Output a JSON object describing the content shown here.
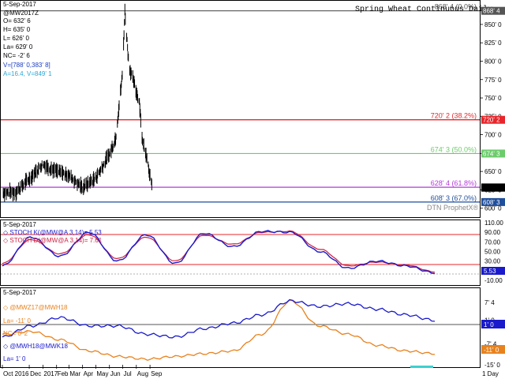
{
  "header": {
    "date": "5-Sep-2017",
    "symbol": "@MW2017Z",
    "ohlc": [
      "O= 632' 6",
      "H= 635' 0",
      "L= 626' 0",
      "La= 629' 0",
      "NC= -2' 6"
    ],
    "volume": "V=[788' 0,383' 8]",
    "avg": "A=16.4, V=849' 1",
    "title": "Spring Wheat Continuous Daily",
    "watermark": "DTN ProphetX®"
  },
  "price_panel": {
    "y_ticks": [
      "868' 4",
      "850' 0",
      "825' 0",
      "800' 0",
      "775' 0",
      "750' 0",
      "725' 0",
      "700' 0",
      "674' 3",
      "650' 0",
      "625' 0",
      "600' 0"
    ],
    "fib_lines": [
      {
        "label": "868' 4 (0.0%)",
        "value": 868.5,
        "color": "#555555",
        "tag": "868' 4"
      },
      {
        "label": "720' 2 (38.2%)",
        "value": 720.25,
        "color": "#e8262b",
        "tag": "720' 2"
      },
      {
        "label": "674' 3 (50.0%)",
        "value": 674.375,
        "color": "#6ccc6c",
        "tag": "674' 3"
      },
      {
        "label": "628' 4 (61.8%)",
        "value": 628.5,
        "color": "#b23ad8",
        "tag": "629' 0"
      },
      {
        "label": "608' 3 (67.0%)",
        "value": 608.375,
        "color": "#1f4e9c",
        "tag": "608' 3"
      }
    ]
  },
  "stoch_panel": {
    "date": "5-Sep-2017",
    "k_label": "STOCH K(@MW@A 3,14)= 5.53",
    "d_label": "STOCH D(@MW@A 3,14)= 7.61",
    "y_ticks": [
      "110.00",
      "90.00",
      "70.00",
      "50.00",
      "30.00",
      "10.00",
      "-10.00"
    ],
    "current_tag": "5.53",
    "k_color": "#1a1acc",
    "d_color": "#cc2244"
  },
  "spread_panel": {
    "date": "5-Sep-2017",
    "s1_label": "@MWZ17@MWH18",
    "s1_last": "La= -11' 0",
    "s1_nc": "NC= 0' 2",
    "s2_label": "@MWH18@MWK18",
    "s2_last": "La= 1' 0",
    "y_ticks": [
      "7' 4",
      "1' 0",
      "-7' 4",
      "-15' 0"
    ],
    "tag_blue": "1' 0",
    "tag_orange": "-11' 0",
    "s1_color": "#e8821e",
    "s2_color": "#1a1acc"
  },
  "x_axis": {
    "labels": [
      "Oct 2016",
      "Dec",
      "2017",
      "Feb",
      "Mar",
      "Apr",
      "May",
      "Jun",
      "Jul",
      "Aug",
      "Sep"
    ],
    "interval": "1 Day"
  },
  "chart_data": [
    {
      "type": "ohlc",
      "title": "Spring Wheat Continuous Daily",
      "ylim": [
        590,
        880
      ],
      "x": [
        "2016-10-01",
        "2016-11-01",
        "2016-12-01",
        "2017-01-01",
        "2017-02-01",
        "2017-03-01",
        "2017-04-01",
        "2017-05-01",
        "2017-06-01",
        "2017-06-15",
        "2017-06-30",
        "2017-07-06",
        "2017-07-15",
        "2017-07-31",
        "2017-08-08",
        "2017-08-15",
        "2017-08-25",
        "2017-09-05"
      ],
      "close": [
        621,
        622,
        640,
        660,
        650,
        645,
        628,
        641,
        673,
        695,
        780,
        868,
        795,
        760,
        745,
        690,
        670,
        629
      ]
    },
    {
      "type": "line",
      "series": [
        {
          "name": "STOCH K(@MW@A 3,14)",
          "values": [
            20,
            80,
            40,
            90,
            30,
            85,
            25,
            88,
            60,
            92,
            90,
            50,
            15,
            30,
            20,
            5.53
          ]
        },
        {
          "name": "STOCH D(@MW@A 3,14)",
          "values": [
            25,
            75,
            45,
            85,
            35,
            80,
            30,
            84,
            65,
            90,
            92,
            55,
            20,
            28,
            22,
            7.61
          ]
        }
      ],
      "ylim": [
        -10,
        110
      ]
    },
    {
      "type": "line",
      "series": [
        {
          "name": "@MWZ17@MWH18",
          "values": [
            -4,
            -3,
            -6,
            -10,
            -12,
            -13,
            -12,
            -11,
            -10,
            -4,
            8,
            -1,
            -4,
            -8,
            -10,
            -11
          ]
        },
        {
          "name": "@MWH18@MWK18",
          "values": [
            -5,
            -1,
            2,
            -1,
            -1,
            -4,
            -5,
            -2,
            0,
            3,
            8,
            6,
            7,
            5,
            3,
            1
          ]
        }
      ],
      "ylim": [
        -15,
        12
      ]
    }
  ]
}
